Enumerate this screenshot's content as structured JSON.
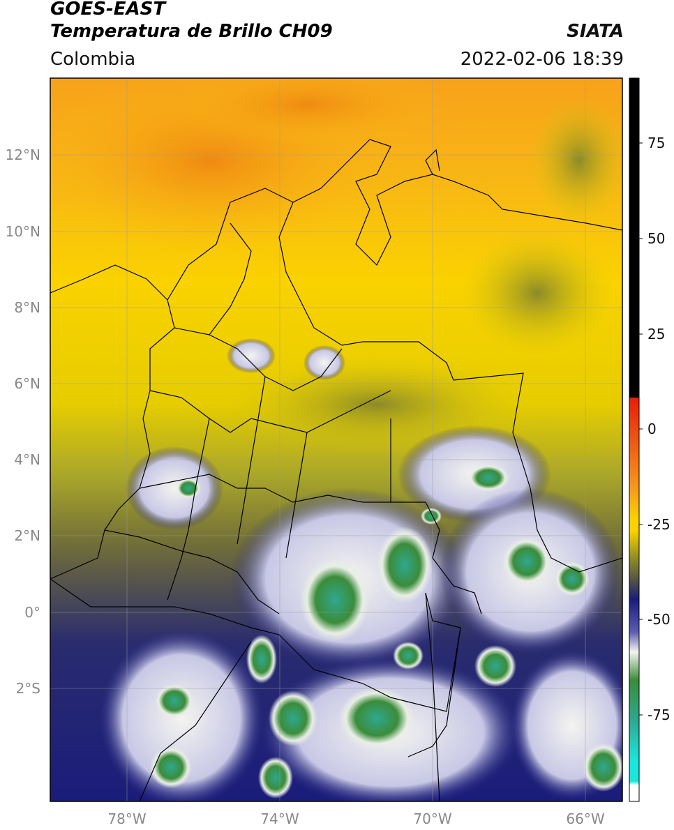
{
  "header": {
    "satellite": "GOES-EAST",
    "product": "Temperatura de Brillo CH09",
    "region": "Colombia",
    "organization": "SIATA",
    "datetime": "2022-02-06 18:39"
  },
  "map": {
    "lat_ticks": [
      "12°N",
      "10°N",
      "8°N",
      "6°N",
      "4°N",
      "2°N",
      "0°",
      "2°S"
    ],
    "lon_ticks": [
      "78°W",
      "74°W",
      "70°W",
      "66°W"
    ],
    "lon_range": [
      -80,
      -65
    ],
    "lat_range": [
      -5,
      14
    ]
  },
  "colorbar": {
    "tick_labels": [
      "75",
      "50",
      "25",
      "0",
      "-25",
      "-50",
      "-75"
    ],
    "colors": {
      "black": "#000000",
      "red": "#e61e0a",
      "orange": "#f5961e",
      "yellow": "#fad200",
      "olive": "#8c8a28",
      "navy": "#1a1c7a",
      "white": "#f4f4f0",
      "green": "#3b8c3a",
      "teal": "#2fa890",
      "cyan": "#1ce6dc"
    }
  }
}
